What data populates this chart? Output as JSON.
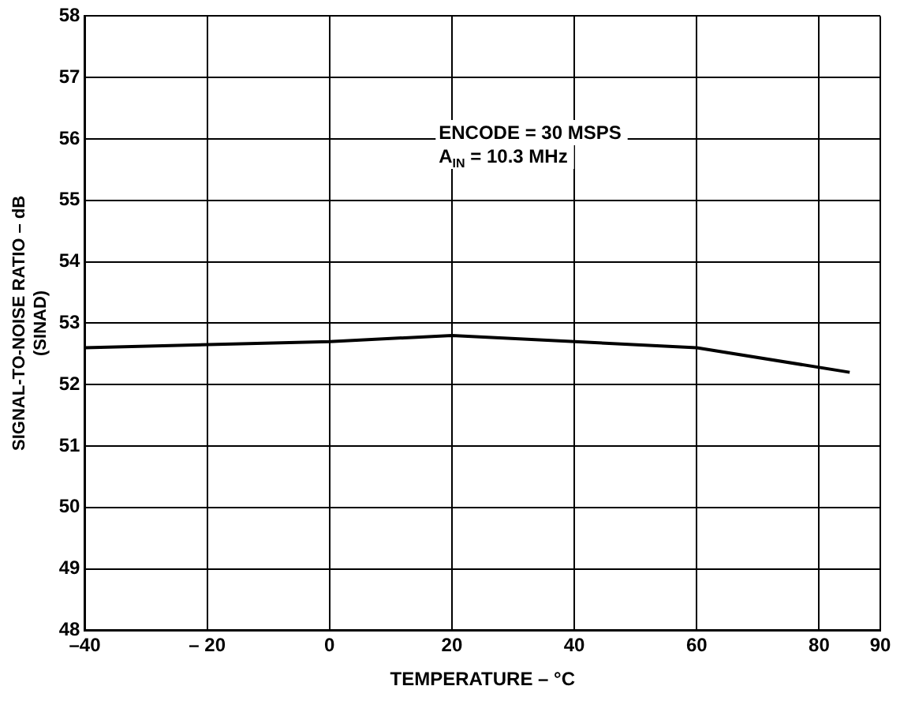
{
  "chart_data": {
    "type": "line",
    "xlabel": "TEMPERATURE – °C",
    "ylabel": "SIGNAL-TO-NOISE RATIO – dB\n(SINAD)",
    "x": [
      -40,
      0,
      20,
      60,
      85
    ],
    "series": [
      {
        "color": "#000000",
        "values": [
          52.6,
          52.7,
          52.8,
          52.6,
          52.2
        ]
      }
    ],
    "xlim": [
      -40,
      90
    ],
    "xticks": [
      {
        "value": -40,
        "label": "–40"
      },
      {
        "value": -20,
        "label": "– 20"
      },
      0,
      20,
      40,
      60,
      80,
      90
    ],
    "ylim": [
      48,
      58
    ],
    "yticks": [
      48,
      49,
      50,
      51,
      52,
      53,
      54,
      55,
      56,
      57,
      58
    ],
    "grid": true,
    "marker": "none",
    "line_style": "solid",
    "annotations": [
      "ENCODE = 30 MSPS",
      "A$_{IN}$ = 10.3 MHz"
    ]
  }
}
